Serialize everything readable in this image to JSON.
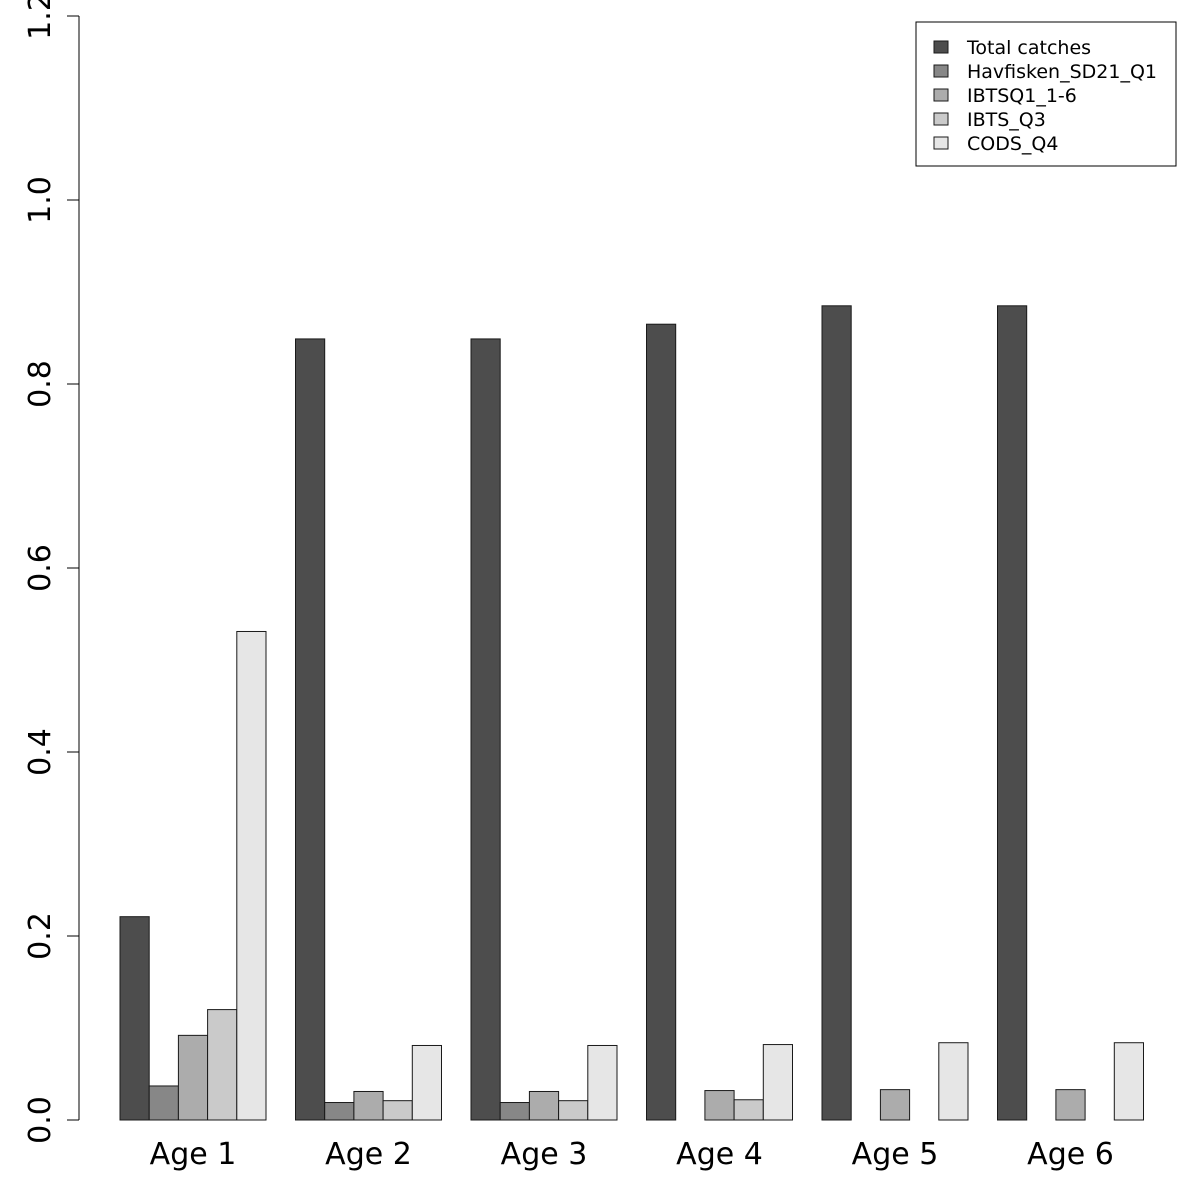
{
  "chart_data": {
    "type": "bar",
    "categories": [
      "Age 1",
      "Age 2",
      "Age 3",
      "Age 4",
      "Age 5",
      "Age 6"
    ],
    "series": [
      {
        "name": "Total catches",
        "color": "#4d4d4d",
        "values": [
          0.221,
          0.849,
          0.849,
          0.865,
          0.885,
          0.885
        ]
      },
      {
        "name": "Havfisken_SD21_Q1",
        "color": "#878787",
        "values": [
          0.037,
          0.019,
          0.019,
          0,
          0,
          0
        ]
      },
      {
        "name": "IBTSQ1_1-6",
        "color": "#acacac",
        "values": [
          0.092,
          0.031,
          0.031,
          0.032,
          0.033,
          0.033
        ]
      },
      {
        "name": "IBTS_Q3",
        "color": "#cacaca",
        "values": [
          0.12,
          0.021,
          0.021,
          0.022,
          0,
          0
        ]
      },
      {
        "name": "CODS_Q4",
        "color": "#e6e6e6",
        "values": [
          0.531,
          0.081,
          0.081,
          0.082,
          0.084,
          0.084
        ]
      }
    ],
    "ylim": [
      0,
      1.2
    ],
    "yticks": [
      "0.0",
      "0.2",
      "0.4",
      "0.6",
      "0.8",
      "1.0",
      "1.2"
    ],
    "legend_position": "top-right",
    "grid": false
  }
}
